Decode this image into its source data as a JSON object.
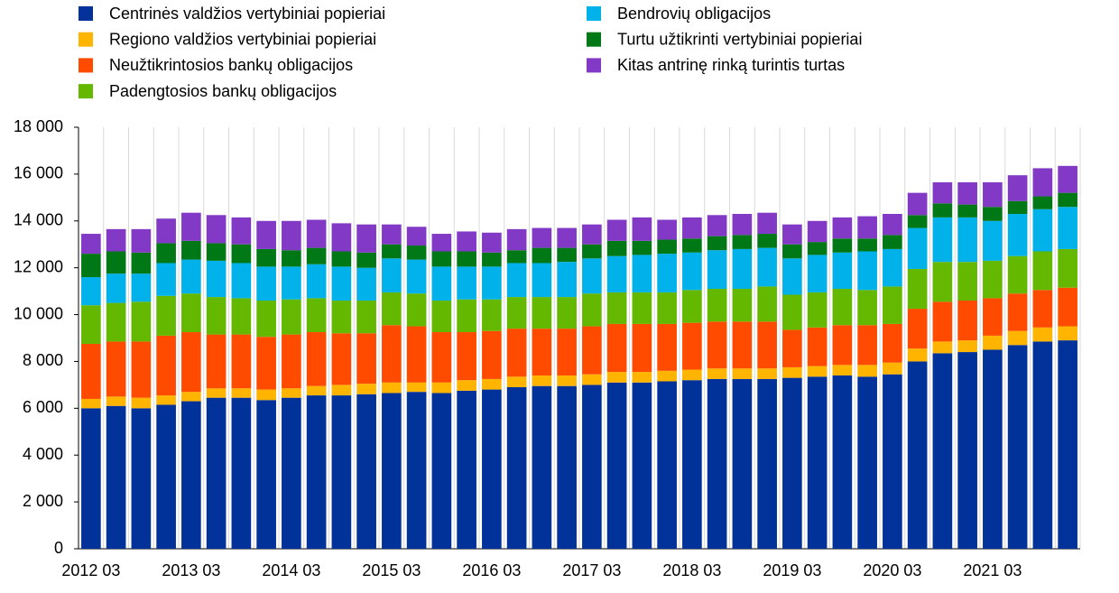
{
  "chart_data": {
    "type": "stacked-bar",
    "categories": [
      "2012 03",
      null,
      null,
      null,
      "2013 03",
      null,
      null,
      null,
      "2014 03",
      null,
      null,
      null,
      "2015 03",
      null,
      null,
      null,
      "2016 03",
      null,
      null,
      null,
      "2017 03",
      null,
      null,
      null,
      "2018 03",
      null,
      null,
      null,
      "2019 03",
      null,
      null,
      null,
      "2020 03",
      null,
      null,
      null,
      "2021 03",
      null,
      null,
      null
    ],
    "series": [
      {
        "name": "Centrinės valdžios vertybiniai popieriai",
        "color": "#003299",
        "values": [
          6000,
          6100,
          6000,
          6150,
          6300,
          6450,
          6450,
          6350,
          6450,
          6550,
          6550,
          6600,
          6650,
          6700,
          6650,
          6750,
          6800,
          6900,
          6950,
          6950,
          7000,
          7100,
          7100,
          7150,
          7200,
          7250,
          7250,
          7250,
          7300,
          7350,
          7400,
          7350,
          7450,
          8000,
          8350,
          8400,
          8500,
          8700,
          8850,
          8900
        ]
      },
      {
        "name": "Regiono valdžios vertybiniai popieriai",
        "color": "#ffb400",
        "values": [
          400,
          400,
          450,
          400,
          400,
          400,
          400,
          450,
          400,
          400,
          450,
          450,
          450,
          400,
          450,
          450,
          450,
          450,
          450,
          450,
          450,
          450,
          450,
          450,
          450,
          450,
          450,
          450,
          450,
          450,
          450,
          500,
          500,
          550,
          500,
          500,
          600,
          600,
          600,
          600
        ]
      },
      {
        "name": "Neužtikrintosios bankų obligacijos",
        "color": "#ff4b00",
        "values": [
          2350,
          2350,
          2400,
          2550,
          2550,
          2300,
          2300,
          2250,
          2300,
          2300,
          2200,
          2150,
          2450,
          2400,
          2150,
          2050,
          2050,
          2050,
          2000,
          2000,
          2050,
          2050,
          2050,
          2000,
          2000,
          2000,
          2000,
          2000,
          1600,
          1650,
          1700,
          1700,
          1650,
          1700,
          1700,
          1700,
          1600,
          1600,
          1600,
          1650
        ]
      },
      {
        "name": "Padengtosios bankų obligacijos",
        "color": "#65b800",
        "values": [
          1650,
          1650,
          1700,
          1700,
          1650,
          1600,
          1550,
          1550,
          1500,
          1450,
          1400,
          1400,
          1400,
          1400,
          1350,
          1400,
          1350,
          1350,
          1350,
          1350,
          1400,
          1350,
          1350,
          1350,
          1400,
          1400,
          1400,
          1500,
          1500,
          1500,
          1550,
          1500,
          1600,
          1700,
          1700,
          1650,
          1600,
          1600,
          1650,
          1650
        ]
      },
      {
        "name": "Bendrovių obligacijos",
        "color": "#00b1ea",
        "values": [
          1200,
          1250,
          1200,
          1400,
          1450,
          1550,
          1500,
          1450,
          1400,
          1450,
          1450,
          1400,
          1450,
          1450,
          1450,
          1400,
          1400,
          1450,
          1450,
          1500,
          1500,
          1550,
          1600,
          1650,
          1600,
          1650,
          1700,
          1650,
          1550,
          1600,
          1550,
          1650,
          1600,
          1750,
          1900,
          1900,
          1700,
          1800,
          1800,
          1800
        ]
      },
      {
        "name": "Turtu užtikrinti vertybiniai popieriai",
        "color": "#007816",
        "values": [
          1000,
          950,
          900,
          850,
          800,
          750,
          800,
          750,
          700,
          700,
          650,
          650,
          600,
          600,
          650,
          650,
          600,
          550,
          650,
          600,
          600,
          650,
          600,
          600,
          600,
          600,
          600,
          600,
          600,
          550,
          600,
          550,
          600,
          550,
          600,
          550,
          600,
          550,
          550,
          600
        ]
      },
      {
        "name": "Kitas antrinę rinką turintis turtas",
        "color": "#8139c6",
        "values": [
          850,
          950,
          1000,
          1050,
          1200,
          1200,
          1150,
          1200,
          1250,
          1200,
          1200,
          1200,
          850,
          800,
          750,
          850,
          850,
          900,
          850,
          850,
          850,
          900,
          1000,
          850,
          900,
          900,
          900,
          900,
          850,
          900,
          900,
          950,
          900,
          950,
          900,
          950,
          1050,
          1100,
          1200,
          1150
        ]
      }
    ],
    "ylim": [
      0,
      18000
    ],
    "yticks": [
      0,
      {
        "value": 2000,
        "label": "2 000"
      },
      {
        "value": 4000,
        "label": "4 000"
      },
      {
        "value": 6000,
        "label": "6 000"
      },
      {
        "value": 8000,
        "label": "8 000"
      },
      {
        "value": 10000,
        "label": "10 000"
      },
      {
        "value": 12000,
        "label": "12 000"
      },
      {
        "value": 14000,
        "label": "14 000"
      },
      {
        "value": 16000,
        "label": "16 000"
      },
      {
        "value": 18000,
        "label": "18 000"
      }
    ]
  }
}
